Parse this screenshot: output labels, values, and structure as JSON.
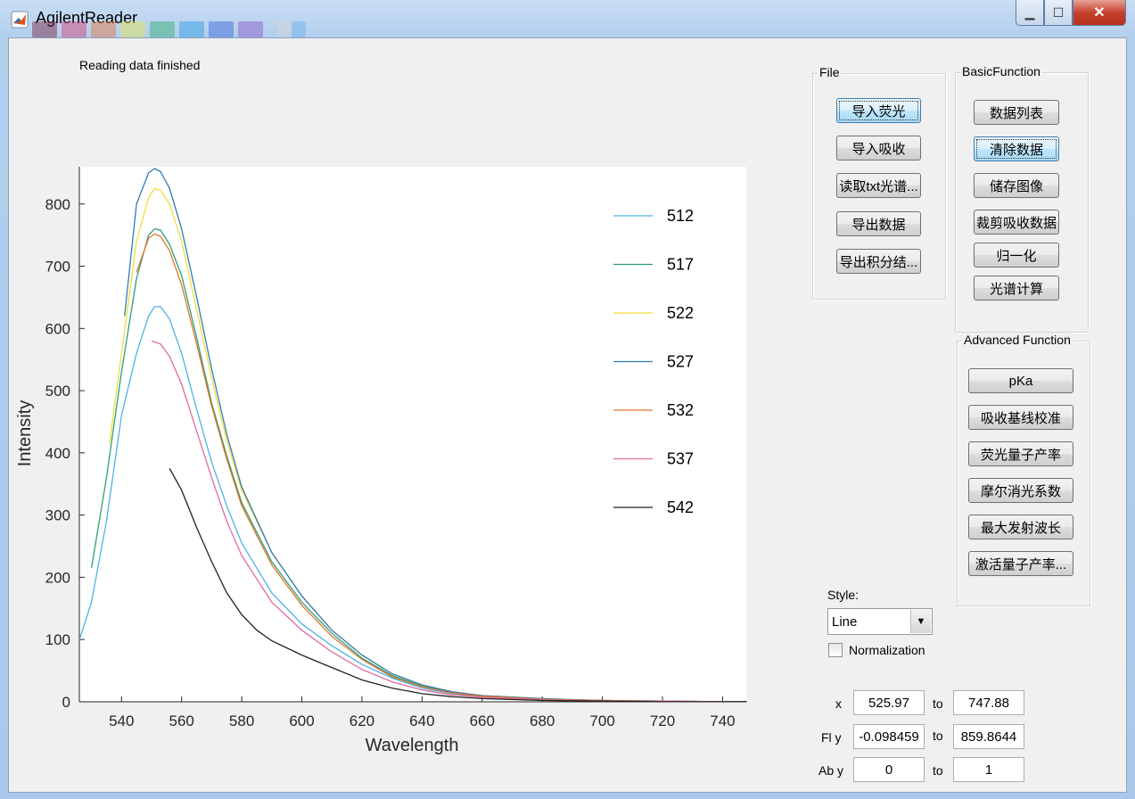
{
  "window": {
    "title": "AgilentReader",
    "swatch_colors": [
      "#7c1e3a",
      "#d63a6e",
      "#e8733a",
      "#e8e84a",
      "#2fae6a",
      "#2a9be0",
      "#3a5fd8",
      "#8a55c8",
      "#d8d8d8",
      "#6ab0e8"
    ]
  },
  "status_text": "Reading data finished",
  "file_panel": {
    "title": "File",
    "buttons": [
      "导入荧光",
      "导入吸收",
      "读取txt光谱...",
      "导出数据",
      "导出积分结..."
    ]
  },
  "basic_panel": {
    "title": "BasicFunction",
    "buttons": [
      "数据列表",
      "清除数据",
      "储存图像",
      "裁剪吸收数据",
      "归一化",
      "光谱计算"
    ]
  },
  "advanced_panel": {
    "title": "Advanced Function",
    "buttons": [
      "pKa",
      "吸收基线校准",
      "荧光量子产率",
      "摩尔消光系数",
      "最大发射波长",
      "激活量子产率..."
    ]
  },
  "style": {
    "label": "Style:",
    "selected": "Line",
    "normalization_label": "Normalization"
  },
  "ranges": {
    "x_label": "x",
    "x_from": "525.97",
    "x_to": "747.88",
    "fly_label": "Fl y",
    "fly_from": "-0.098459",
    "fly_to": "859.8644",
    "aby_label": "Ab y",
    "aby_from": "0",
    "aby_to": "1",
    "to_label": "to"
  },
  "chart_data": {
    "type": "line",
    "title": "",
    "xlabel": "Wavelength",
    "ylabel": "Intensity",
    "xlim": [
      525.97,
      747.88
    ],
    "ylim": [
      -0.098459,
      859.8644
    ],
    "xticks": [
      540,
      560,
      580,
      600,
      620,
      640,
      660,
      680,
      700,
      720,
      740
    ],
    "yticks": [
      0,
      100,
      200,
      300,
      400,
      500,
      600,
      700,
      800
    ],
    "grid": false,
    "legend_position": "top-right",
    "series": [
      {
        "name": "512",
        "color": "#4db3e6",
        "x": [
          526,
          530,
          535,
          540,
          545,
          549,
          551,
          553,
          556,
          560,
          565,
          570,
          575,
          580,
          590,
          600,
          610,
          620,
          630,
          640,
          650,
          660,
          680,
          700,
          720,
          740,
          748
        ],
        "y": [
          100,
          160,
          290,
          460,
          560,
          620,
          635,
          635,
          615,
          560,
          470,
          385,
          315,
          255,
          175,
          125,
          90,
          60,
          38,
          22,
          13,
          8,
          4,
          2,
          1,
          0,
          0
        ]
      },
      {
        "name": "517",
        "color": "#2e9c7a",
        "x": [
          530,
          535,
          540,
          545,
          549,
          551,
          553,
          556,
          560,
          565,
          570,
          575,
          580,
          590,
          600,
          610,
          620,
          630,
          640,
          650,
          660,
          680,
          700,
          720,
          740,
          748
        ],
        "y": [
          215,
          360,
          530,
          680,
          750,
          760,
          758,
          735,
          685,
          585,
          480,
          395,
          320,
          225,
          160,
          110,
          70,
          42,
          25,
          15,
          9,
          4,
          2,
          1,
          0,
          0
        ]
      },
      {
        "name": "522",
        "color": "#f2dc3c",
        "x": [
          536,
          540,
          545,
          549,
          551,
          553,
          556,
          560,
          565,
          570,
          575,
          580,
          590,
          600,
          610,
          620,
          630,
          640,
          650,
          660,
          680,
          700,
          720,
          740,
          748
        ],
        "y": [
          415,
          560,
          740,
          810,
          825,
          822,
          800,
          740,
          630,
          520,
          420,
          340,
          240,
          170,
          115,
          75,
          45,
          27,
          16,
          10,
          5,
          2,
          1,
          0,
          0
        ]
      },
      {
        "name": "527",
        "color": "#2f7bb5",
        "x": [
          541,
          545,
          549,
          551,
          553,
          556,
          560,
          565,
          570,
          575,
          580,
          590,
          600,
          610,
          620,
          630,
          640,
          650,
          660,
          680,
          700,
          720,
          740,
          748
        ],
        "y": [
          620,
          800,
          850,
          857,
          852,
          825,
          760,
          650,
          535,
          430,
          345,
          240,
          170,
          115,
          75,
          45,
          27,
          16,
          10,
          5,
          2,
          1,
          0,
          0
        ]
      },
      {
        "name": "532",
        "color": "#e0752a",
        "x": [
          545,
          549,
          551,
          553,
          556,
          560,
          565,
          570,
          575,
          580,
          590,
          600,
          610,
          620,
          630,
          640,
          650,
          660,
          680,
          700,
          720,
          740,
          748
        ],
        "y": [
          690,
          745,
          752,
          748,
          725,
          670,
          575,
          475,
          390,
          315,
          220,
          155,
          105,
          68,
          40,
          24,
          14,
          9,
          4,
          2,
          1,
          0,
          0
        ]
      },
      {
        "name": "537",
        "color": "#e26aa0",
        "x": [
          550,
          553,
          556,
          560,
          565,
          570,
          575,
          580,
          590,
          600,
          610,
          620,
          630,
          640,
          650,
          660,
          680,
          700,
          720,
          740,
          748
        ],
        "y": [
          580,
          575,
          555,
          510,
          435,
          360,
          290,
          235,
          160,
          115,
          80,
          52,
          32,
          19,
          11,
          7,
          3,
          1,
          1,
          0,
          0
        ]
      },
      {
        "name": "542",
        "color": "#222222",
        "x": [
          556,
          560,
          565,
          570,
          575,
          580,
          585,
          590,
          600,
          610,
          620,
          630,
          640,
          650,
          660,
          680,
          700,
          720,
          740,
          748
        ],
        "y": [
          375,
          340,
          280,
          225,
          175,
          140,
          115,
          98,
          75,
          55,
          35,
          22,
          13,
          8,
          5,
          2,
          1,
          0,
          0,
          0
        ]
      }
    ]
  }
}
